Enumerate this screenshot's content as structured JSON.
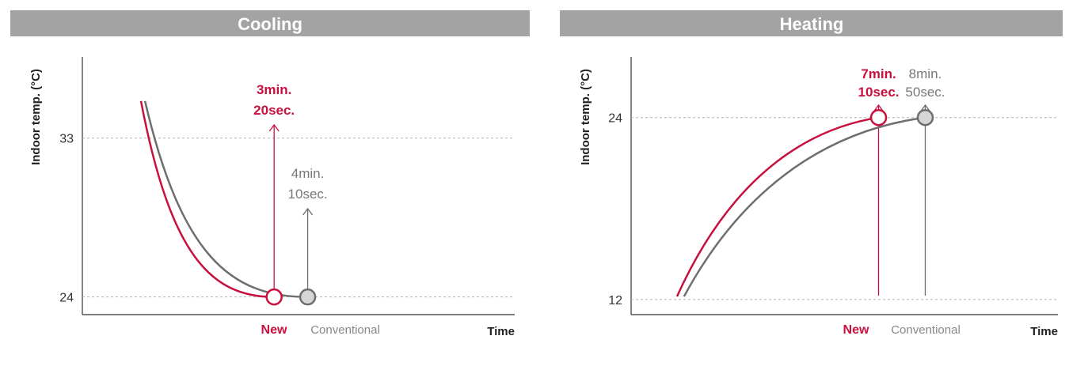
{
  "colors": {
    "header_bg": "#a3a3a3",
    "new": "#c8103e",
    "conventional": "#6e6e6e",
    "marker_fill_conventional": "#d6d6d6",
    "gridline": "#b0b0b0",
    "axis": "#333333"
  },
  "chart_data": [
    {
      "type": "line",
      "title": "Cooling",
      "xlabel": "Time",
      "ylabel": "Indoor temp. (°C)",
      "yticks": [
        24,
        33
      ],
      "ylim": [
        23,
        37.6
      ],
      "x_categories": [
        "New",
        "Conventional"
      ],
      "grid": "horizontal dashed at tick values",
      "series": [
        {
          "name": "New",
          "start": {
            "x": 0.0,
            "y": 35.1
          },
          "end": {
            "x": 3.33,
            "y": 24
          },
          "annotation": [
            "3min.",
            "20sec."
          ],
          "annotation_style": "bold"
        },
        {
          "name": "Conventional",
          "start": {
            "x": 0.1,
            "y": 35.1
          },
          "end": {
            "x": 4.17,
            "y": 24
          },
          "annotation": [
            "4min.",
            "10sec."
          ],
          "annotation_style": "regular"
        }
      ]
    },
    {
      "type": "line",
      "title": "Heating",
      "xlabel": "Time",
      "ylabel": "Indoor temp. (°C)",
      "yticks": [
        12,
        24
      ],
      "ylim": [
        11,
        28
      ],
      "x_categories": [
        "New",
        "Conventional"
      ],
      "grid": "horizontal dashed at tick values",
      "series": [
        {
          "name": "New",
          "start": {
            "x": 0.0,
            "y": 12.2
          },
          "end": {
            "x": 7.17,
            "y": 24
          },
          "annotation": [
            "7min.",
            "10sec."
          ],
          "annotation_style": "bold"
        },
        {
          "name": "Conventional",
          "start": {
            "x": 0.25,
            "y": 12.2
          },
          "end": {
            "x": 8.83,
            "y": 24
          },
          "annotation": [
            "8min.",
            "50sec."
          ],
          "annotation_style": "regular"
        }
      ]
    }
  ]
}
